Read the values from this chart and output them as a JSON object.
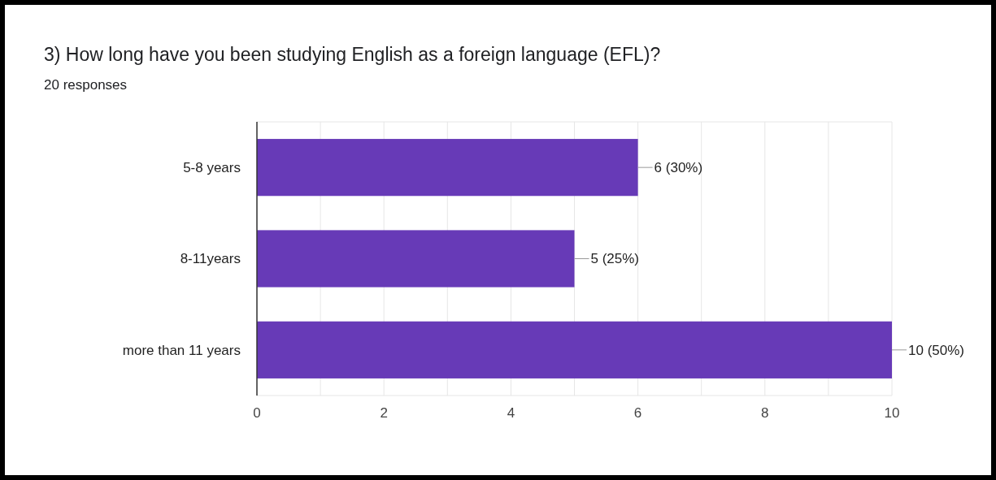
{
  "chart_data": {
    "type": "bar",
    "orientation": "horizontal",
    "title": "3) How long have you been studying English as a foreign language (EFL)?",
    "subtitle": "20 responses",
    "categories": [
      "5-8 years",
      "8-11years",
      "more than 11 years"
    ],
    "values": [
      6,
      5,
      10
    ],
    "value_labels": [
      "6 (30%)",
      "5 (25%)",
      "10 (50%)"
    ],
    "color": "#673ab7",
    "xlim": [
      0,
      10
    ],
    "xticks": [
      0,
      {
        "value": 1,
        "label": null
      },
      2,
      {
        "value": 3,
        "label": null
      },
      4,
      {
        "value": 5,
        "label": null
      },
      6,
      {
        "value": 7,
        "label": null
      },
      8,
      {
        "value": 9,
        "label": null
      },
      10
    ],
    "grid": "x"
  }
}
